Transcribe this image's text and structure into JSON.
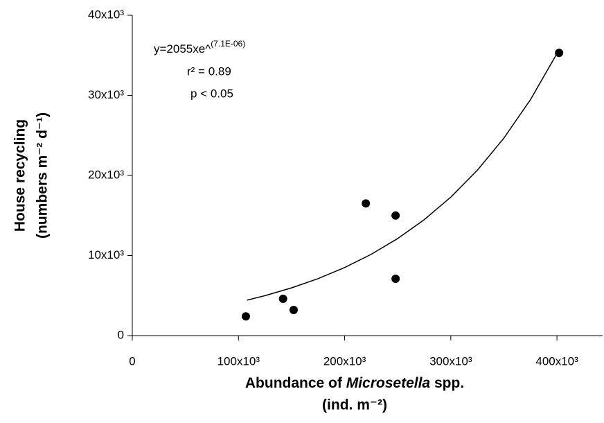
{
  "chart_data": {
    "type": "scatter",
    "xlabel": {
      "prefix": "Abundance of",
      "italic": "Microsetella",
      "suffix": "spp.",
      "units": "(ind. m⁻²)"
    },
    "ylabel": [
      "House recycling",
      "(numbers m⁻² d⁻¹)"
    ],
    "annotations": {
      "equation": "y=2055xe^",
      "exponent": "(7.1E-06)",
      "r2": "r² = 0.89",
      "p": "p < 0.05"
    },
    "series": [
      {
        "color": "#000000",
        "x": [
          107000,
          142000,
          152000,
          220000,
          248000,
          248000,
          402000
        ],
        "values": [
          2400,
          4600,
          3200,
          16500,
          15000,
          7100,
          35300
        ]
      }
    ],
    "fit": {
      "color": "#000000",
      "x": [
        108000,
        125000,
        150000,
        175000,
        200000,
        225000,
        250000,
        275000,
        300000,
        325000,
        350000,
        375000,
        402000
      ],
      "values": [
        4425,
        4992,
        5962,
        7119,
        8501,
        10152,
        12125,
        14481,
        17293,
        20650,
        24660,
        29450,
        35680
      ]
    },
    "xlim": [
      0,
      443000
    ],
    "xticks": [
      0,
      {
        "value": 100000,
        "label": "100x10³"
      },
      {
        "value": 200000,
        "label": "200x10³"
      },
      {
        "value": 300000,
        "label": "300x10³"
      },
      {
        "value": 400000,
        "label": "400x10³"
      }
    ],
    "ylim": [
      0,
      40000
    ],
    "yticks": [
      0,
      {
        "value": 10000,
        "label": "10x10³"
      },
      {
        "value": 20000,
        "label": "20x10³"
      },
      {
        "value": 30000,
        "label": "30x10³"
      },
      {
        "value": 40000,
        "label": "40x10³"
      }
    ],
    "grid": false
  }
}
